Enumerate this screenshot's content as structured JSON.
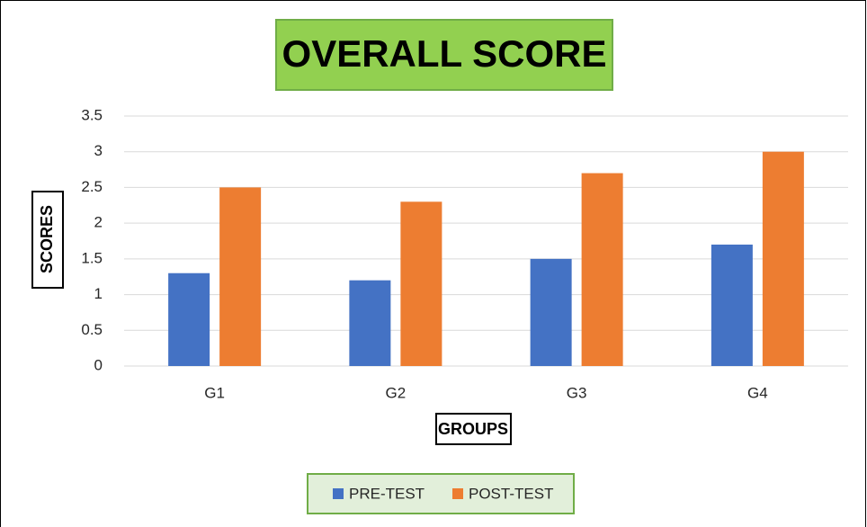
{
  "chart_data": {
    "type": "bar",
    "title": "OVERALL SCORE",
    "x_label": "GROUPS",
    "y_label": "SCORES",
    "categories": [
      "G1",
      "G2",
      "G3",
      "G4"
    ],
    "series": [
      {
        "name": "PRE-TEST",
        "color": "#4472c4",
        "values": [
          1.3,
          1.2,
          1.5,
          1.7
        ]
      },
      {
        "name": "POST-TEST",
        "color": "#ed7d31",
        "values": [
          2.5,
          2.3,
          2.7,
          3
        ]
      }
    ],
    "ylim": [
      0,
      3.5
    ],
    "yticks": [
      0,
      0.5,
      1,
      1.5,
      2,
      2.5,
      3,
      3.5
    ],
    "grid": true,
    "legend": "bottom"
  }
}
